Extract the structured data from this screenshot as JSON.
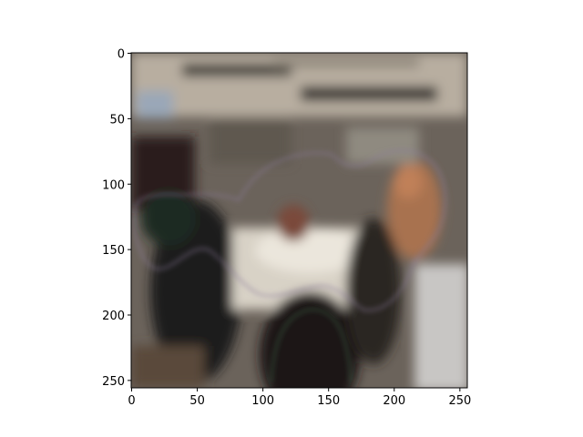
{
  "chart_data": {
    "type": "heatmap",
    "description_kind": "image-plot",
    "title": "",
    "xlabel": "",
    "ylabel": "",
    "x_range": [
      0,
      256
    ],
    "y_range": [
      256,
      0
    ],
    "y_inverted": true,
    "x_ticks": [
      0,
      50,
      100,
      150,
      200,
      250
    ],
    "y_ticks": [
      0,
      50,
      100,
      150,
      200,
      250
    ],
    "x_tick_labels": [
      "0",
      "50",
      "100",
      "150",
      "200",
      "250"
    ],
    "y_tick_labels": [
      "0",
      "50",
      "100",
      "150",
      "200",
      "250"
    ],
    "grid": false,
    "legend": "none"
  },
  "colors": {
    "background": "#ffffff",
    "axis": "#000000",
    "image_dominant": "#5a5048"
  }
}
